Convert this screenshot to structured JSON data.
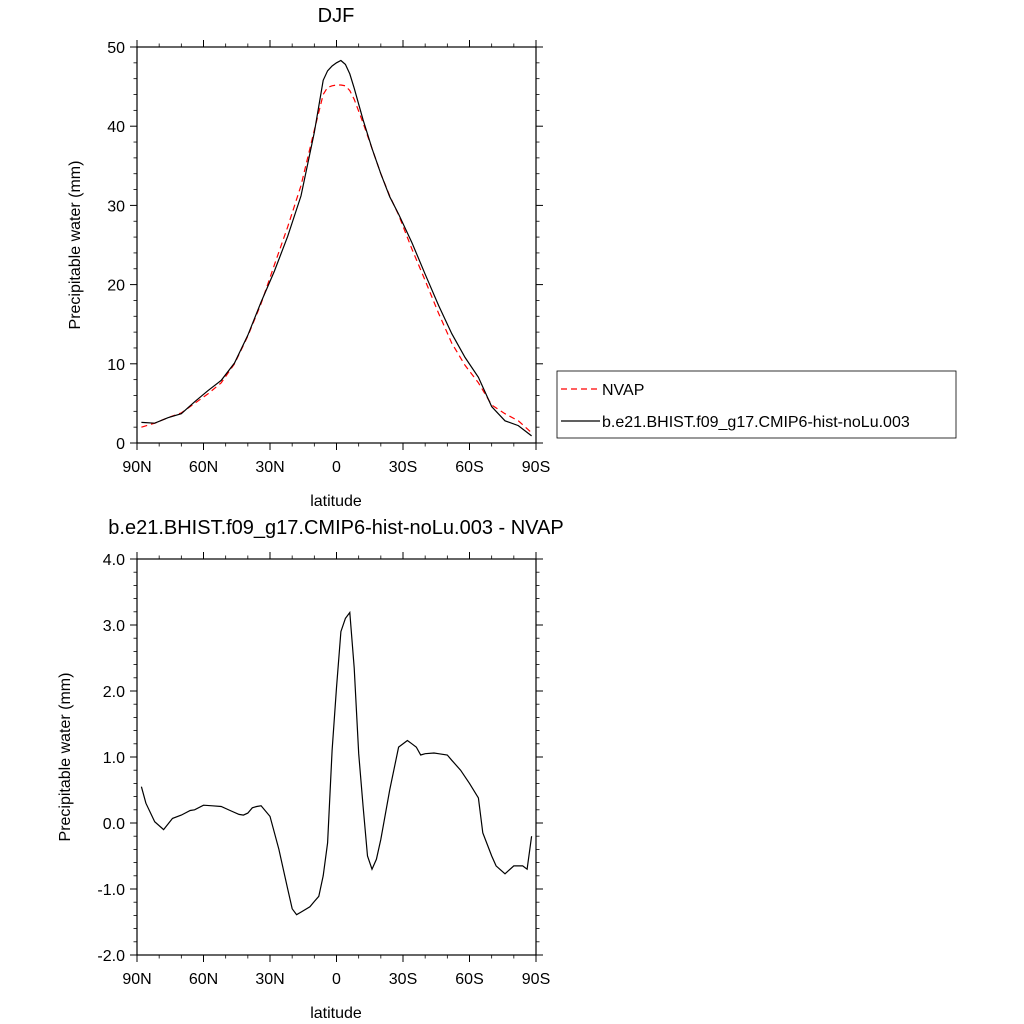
{
  "chart_data": [
    {
      "type": "line",
      "title": "DJF",
      "xlabel": "latitude",
      "ylabel": "Precipitable water (mm)",
      "xlim": [
        90,
        -90
      ],
      "ylim": [
        0,
        50
      ],
      "xticks": [
        90,
        60,
        30,
        0,
        -30,
        -60,
        -90
      ],
      "xtick_labels": [
        "90N",
        "60N",
        "30N",
        "0",
        "30S",
        "60S",
        "90S"
      ],
      "yticks": [
        0,
        10,
        20,
        30,
        40,
        50
      ],
      "ytick_labels": [
        "0",
        "10",
        "20",
        "30",
        "40",
        "50"
      ],
      "grid": false,
      "legend_position": "right",
      "series": [
        {
          "name": "NVAP",
          "color": "#ff0000",
          "style": "dashed",
          "x": [
            88,
            82,
            76,
            70,
            64,
            58,
            52,
            46,
            40,
            34,
            28,
            22,
            16,
            10,
            6,
            4,
            2,
            0,
            -2,
            -4,
            -6,
            -8,
            -12,
            -16,
            -20,
            -24,
            -28,
            -34,
            -40,
            -46,
            -52,
            -58,
            -64,
            -70,
            -76,
            -82,
            -88
          ],
          "values": [
            2.0,
            2.5,
            3.2,
            3.8,
            5.0,
            6.2,
            7.6,
            10.0,
            13.5,
            17.6,
            22.5,
            27.3,
            32.5,
            39.5,
            44.0,
            44.9,
            45.1,
            45.2,
            45.2,
            45.1,
            44.5,
            43.4,
            40.4,
            37.2,
            34.0,
            31.2,
            28.8,
            24.5,
            20.5,
            16.4,
            12.6,
            9.8,
            7.6,
            4.8,
            3.7,
            2.8,
            1.3
          ]
        },
        {
          "name": "b.e21.BHIST.f09_g17.CMIP6-hist-noLu.003",
          "color": "#000000",
          "style": "solid",
          "x": [
            88,
            82,
            76,
            70,
            64,
            58,
            52,
            46,
            40,
            34,
            28,
            22,
            16,
            10,
            6,
            4,
            2,
            0,
            -2,
            -4,
            -6,
            -8,
            -12,
            -16,
            -20,
            -24,
            -28,
            -34,
            -40,
            -46,
            -52,
            -58,
            -64,
            -70,
            -76,
            -82,
            -88
          ],
          "values": [
            2.6,
            2.5,
            3.2,
            3.7,
            5.2,
            6.6,
            7.9,
            10.1,
            13.6,
            17.8,
            21.7,
            26.1,
            31.2,
            39.2,
            45.8,
            47.0,
            47.6,
            48.0,
            48.3,
            47.8,
            46.6,
            44.8,
            40.8,
            37.2,
            34.0,
            31.1,
            28.9,
            25.3,
            21.3,
            17.4,
            13.8,
            10.8,
            8.3,
            4.6,
            2.8,
            2.2,
            0.9
          ]
        }
      ]
    },
    {
      "type": "line",
      "title": "b.e21.BHIST.f09_g17.CMIP6-hist-noLu.003 - NVAP",
      "xlabel": "latitude",
      "ylabel": "Precipitable water (mm)",
      "xlim": [
        90,
        -90
      ],
      "ylim": [
        -2.0,
        4.0
      ],
      "xticks": [
        90,
        60,
        30,
        0,
        -30,
        -60,
        -90
      ],
      "xtick_labels": [
        "90N",
        "60N",
        "30N",
        "0",
        "30S",
        "60S",
        "90S"
      ],
      "yticks": [
        -2.0,
        -1.0,
        0.0,
        1.0,
        2.0,
        3.0,
        4.0
      ],
      "ytick_labels": [
        "-2.0",
        "-1.0",
        "0.0",
        "1.0",
        "2.0",
        "3.0",
        "4.0"
      ],
      "grid": false,
      "series": [
        {
          "color": "#000000",
          "style": "solid",
          "x": [
            88,
            86,
            82,
            78,
            74,
            70,
            66,
            64,
            60,
            56,
            52,
            48,
            44,
            42,
            40,
            38,
            36,
            34,
            30,
            26,
            24,
            22,
            20,
            18,
            16,
            12,
            10,
            8,
            6,
            4,
            2,
            0,
            -2,
            -4,
            -6,
            -8,
            -10,
            -12,
            -14,
            -16,
            -18,
            -20,
            -24,
            -28,
            -32,
            -34,
            -36,
            -38,
            -40,
            -44,
            -46,
            -50,
            -52,
            -56,
            -60,
            -64,
            -66,
            -70,
            -72,
            -76,
            -80,
            -84,
            -86,
            -88
          ],
          "values": [
            0.55,
            0.3,
            0.02,
            -0.1,
            0.07,
            0.12,
            0.19,
            0.2,
            0.27,
            0.26,
            0.25,
            0.19,
            0.13,
            0.12,
            0.15,
            0.23,
            0.25,
            0.26,
            0.1,
            -0.4,
            -0.7,
            -1.0,
            -1.3,
            -1.39,
            -1.35,
            -1.27,
            -1.19,
            -1.11,
            -0.8,
            -0.3,
            1.1,
            2.05,
            2.9,
            3.1,
            3.19,
            2.35,
            1.05,
            0.25,
            -0.5,
            -0.7,
            -0.55,
            -0.25,
            0.5,
            1.15,
            1.25,
            1.2,
            1.15,
            1.03,
            1.05,
            1.06,
            1.05,
            1.03,
            0.95,
            0.8,
            0.6,
            0.38,
            -0.15,
            -0.5,
            -0.65,
            -0.77,
            -0.65,
            -0.65,
            -0.7,
            -0.2
          ]
        }
      ]
    }
  ],
  "legend": {
    "entries": [
      {
        "label": "NVAP",
        "color": "#ff0000",
        "style": "dashed"
      },
      {
        "label": "b.e21.BHIST.f09_g17.CMIP6-hist-noLu.003",
        "color": "#000000",
        "style": "solid"
      }
    ]
  }
}
